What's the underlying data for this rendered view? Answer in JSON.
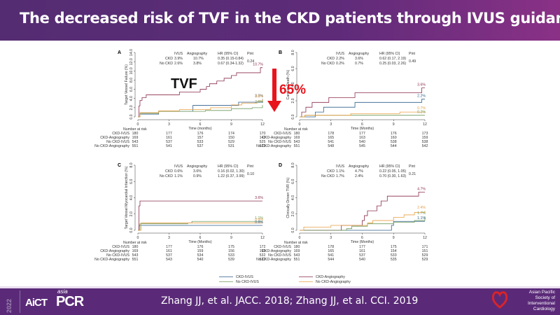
{
  "header": {
    "title": "The  decreased risk of TVF in the CKD patients through IVUS  guidance"
  },
  "annotation": {
    "tvf_label": "TVF",
    "reduction_label": "65%",
    "arrow_color": "#e8141c"
  },
  "footer": {
    "year": "2022",
    "logo_left": "AiCT",
    "logo_asia": "asia",
    "logo_pcr": "PCR",
    "citation": "Zhang JJ, et al. JACC. 2018; Zhang JJ, et al. CCI. 2019",
    "society_lines": [
      "Asian Pacific",
      "Society of",
      "Interventional",
      "Cardiology"
    ]
  },
  "legend": {
    "items": [
      {
        "label": "CKD-IVUS",
        "color": "#2f5f8a"
      },
      {
        "label": "CKD-Angiography",
        "color": "#8b2f4c"
      },
      {
        "label": "No CKD-IVUS",
        "color": "#6e9a5a"
      },
      {
        "label": "No CKD-Angiography",
        "color": "#e8a046"
      }
    ]
  },
  "risk_table_header": "Number at risk",
  "risk_row_labels": [
    "CKD-IVUS",
    "CKD-Angiography",
    "No CKD-IVUS",
    "No CKD-Angiography"
  ],
  "stats_header": {
    "ivus": "IVUS",
    "angio": "Angiography",
    "hr": "HR (95% CI)",
    "p": "P"
  },
  "chart_data": [
    {
      "panel": "A",
      "type": "line",
      "ylabel": "Target Vessel Failure (%)",
      "xlabel": "Time (months)",
      "ylim": [
        0,
        14
      ],
      "yticks": [
        "0.0",
        "2.0",
        "4.0",
        "6.0",
        "8.0",
        "10.0",
        "12.0",
        "14.0"
      ],
      "xlim": [
        0,
        12
      ],
      "xticks": [
        "0",
        "3",
        "6",
        "9",
        "12"
      ],
      "stats": [
        {
          "group": "CKD",
          "ivus": "3.9%",
          "angio": "10.7%",
          "hr": "0.35 (0.15-0.84)"
        },
        {
          "group": "No CKD",
          "ivus": "2.6%",
          "angio": "3.8%",
          "hr": "0.67 (0.34-1.32)"
        }
      ],
      "p_int": "0.24",
      "p_sub": "int",
      "end_labels": [
        {
          "series": 1,
          "text": "10.7%"
        },
        {
          "series": 0,
          "text": "3.9%"
        },
        {
          "series": 3,
          "text": "3.8%"
        },
        {
          "series": 2,
          "text": "2.6%"
        }
      ],
      "series": [
        {
          "name": "CKD-IVUS",
          "points": [
            [
              0,
              0
            ],
            [
              0.2,
              0.6
            ],
            [
              1.5,
              0.6
            ],
            [
              2,
              1.2
            ],
            [
              5,
              1.2
            ],
            [
              5.3,
              2.5
            ],
            [
              9.5,
              2.5
            ],
            [
              9.7,
              3.2
            ],
            [
              11.7,
              3.2
            ],
            [
              12,
              3.9
            ]
          ]
        },
        {
          "name": "CKD-Angiography",
          "points": [
            [
              0,
              0
            ],
            [
              0.1,
              2.4
            ],
            [
              0.2,
              3.6
            ],
            [
              0.4,
              4.2
            ],
            [
              0.8,
              4.8
            ],
            [
              3.9,
              4.8
            ],
            [
              4.0,
              5.4
            ],
            [
              5.6,
              5.4
            ],
            [
              6.0,
              6.0
            ],
            [
              6.6,
              6.6
            ],
            [
              6.9,
              7.2
            ],
            [
              7.6,
              7.8
            ],
            [
              8.3,
              8.4
            ],
            [
              9.0,
              9.0
            ],
            [
              9.5,
              9.6
            ],
            [
              11.6,
              9.6
            ],
            [
              11.8,
              10.7
            ],
            [
              12,
              10.7
            ]
          ]
        },
        {
          "name": "No CKD-IVUS",
          "points": [
            [
              0,
              0
            ],
            [
              0.2,
              0.8
            ],
            [
              1.2,
              0.8
            ],
            [
              2,
              1.2
            ],
            [
              6.5,
              1.4
            ],
            [
              9,
              1.8
            ],
            [
              11,
              2.0
            ],
            [
              12,
              2.6
            ]
          ]
        },
        {
          "name": "No CKD-Angiography",
          "points": [
            [
              0,
              0
            ],
            [
              0.2,
              0.9
            ],
            [
              2,
              1.3
            ],
            [
              4,
              1.6
            ],
            [
              7,
              2.0
            ],
            [
              9,
              2.6
            ],
            [
              10,
              3.0
            ],
            [
              11.5,
              3.4
            ],
            [
              12,
              3.8
            ]
          ]
        }
      ],
      "risk": [
        [
          "180",
          "177",
          "176",
          "174",
          "170"
        ],
        [
          "169",
          "161",
          "157",
          "150",
          "147"
        ],
        [
          "543",
          "537",
          "533",
          "529",
          "525"
        ],
        [
          "551",
          "541",
          "537",
          "531",
          "525"
        ]
      ]
    },
    {
      "panel": "B",
      "type": "line",
      "ylabel": "Cardiac Death (%)",
      "xlabel": "Time (Months)",
      "ylim": [
        0,
        8
      ],
      "yticks": [
        "0.0",
        "2.0",
        "4.0",
        "6.0",
        "8.0"
      ],
      "xlim": [
        0,
        12
      ],
      "xticks": [
        "0",
        "3",
        "6",
        "9",
        "12"
      ],
      "stats": [
        {
          "group": "CKD",
          "ivus": "2.2%",
          "angio": "3.6%",
          "hr": "0.62 (0.17, 2.19)"
        },
        {
          "group": "No CKD",
          "ivus": "0.2%",
          "angio": "0.7%",
          "hr": "0.25 (0.03, 2.26)"
        }
      ],
      "p_int": "0.49",
      "p_sub": "int",
      "end_labels": [
        {
          "series": 1,
          "text": "3.6%"
        },
        {
          "series": 0,
          "text": "2.2%"
        },
        {
          "series": 3,
          "text": "0.7%"
        },
        {
          "series": 2,
          "text": "0.2%"
        }
      ],
      "series": [
        {
          "name": "CKD-IVUS",
          "points": [
            [
              0,
              0
            ],
            [
              0.3,
              0
            ],
            [
              1.5,
              0
            ],
            [
              1.5,
              0.6
            ],
            [
              2.3,
              0.6
            ],
            [
              2.3,
              1.2
            ],
            [
              5.3,
              1.2
            ],
            [
              5.3,
              1.8
            ],
            [
              11.7,
              1.8
            ],
            [
              11.7,
              2.2
            ],
            [
              12,
              2.2
            ]
          ]
        },
        {
          "name": "CKD-Angiography",
          "points": [
            [
              0,
              0
            ],
            [
              0.2,
              0.6
            ],
            [
              0.6,
              1.2
            ],
            [
              1.2,
              1.8
            ],
            [
              2.8,
              2.4
            ],
            [
              5.3,
              3.0
            ],
            [
              11.6,
              3.0
            ],
            [
              11.7,
              3.6
            ],
            [
              12,
              3.6
            ]
          ]
        },
        {
          "name": "No CKD-IVUS",
          "points": [
            [
              0,
              0
            ],
            [
              0.5,
              0.2
            ],
            [
              12,
              0.2
            ]
          ]
        },
        {
          "name": "No CKD-Angiography",
          "points": [
            [
              0,
              0
            ],
            [
              0.5,
              0.2
            ],
            [
              4.9,
              0.4
            ],
            [
              9.6,
              0.6
            ],
            [
              12,
              0.7
            ]
          ]
        }
      ],
      "risk": [
        [
          "180",
          "178",
          "177",
          "176",
          "173"
        ],
        [
          "169",
          "165",
          "163",
          "160",
          "159"
        ],
        [
          "543",
          "541",
          "540",
          "538",
          "538"
        ],
        [
          "551",
          "548",
          "545",
          "544",
          "542"
        ]
      ]
    },
    {
      "panel": "C",
      "type": "line",
      "ylabel": "Target Vessel Myocardial Infarction (%)",
      "xlabel": "Time (Months)",
      "ylim": [
        0,
        8
      ],
      "yticks": [
        "0.0",
        "2.0",
        "4.0",
        "6.0",
        "8.0"
      ],
      "xlim": [
        0,
        12
      ],
      "xticks": [
        "0",
        "3",
        "6",
        "9",
        "12"
      ],
      "stats": [
        {
          "group": "CKD",
          "ivus": "0.6%",
          "angio": "3.6%",
          "hr": "0.16 (0.02, 1.30)"
        },
        {
          "group": "No CKD",
          "ivus": "1.1%",
          "angio": "0.9%",
          "hr": "1.22 (0.37, 3.99)"
        }
      ],
      "p_int": "0.10",
      "p_sub": "int",
      "end_labels": [
        {
          "series": 1,
          "text": "3.6%"
        },
        {
          "series": 2,
          "text": "1.1%"
        },
        {
          "series": 3,
          "text": "0.9%"
        },
        {
          "series": 0,
          "text": "0.6%"
        }
      ],
      "series": [
        {
          "name": "CKD-IVUS",
          "points": [
            [
              0,
              0
            ],
            [
              0.1,
              0.6
            ],
            [
              12,
              0.6
            ]
          ]
        },
        {
          "name": "CKD-Angiography",
          "points": [
            [
              0,
              0
            ],
            [
              0.1,
              3.0
            ],
            [
              0.2,
              3.6
            ],
            [
              12,
              3.6
            ]
          ]
        },
        {
          "name": "No CKD-IVUS",
          "points": [
            [
              0,
              0
            ],
            [
              0.2,
              0.8
            ],
            [
              4.8,
              0.9
            ],
            [
              5.2,
              1.1
            ],
            [
              12,
              1.1
            ]
          ]
        },
        {
          "name": "No CKD-Angiography",
          "points": [
            [
              0,
              0
            ],
            [
              0.3,
              0.9
            ],
            [
              12,
              0.9
            ]
          ]
        }
      ],
      "risk": [
        [
          "180",
          "177",
          "176",
          "175",
          "172"
        ],
        [
          "169",
          "161",
          "159",
          "156",
          "155"
        ],
        [
          "543",
          "537",
          "534",
          "533",
          "532"
        ],
        [
          "551",
          "543",
          "540",
          "539",
          "537"
        ]
      ]
    },
    {
      "panel": "D",
      "type": "line",
      "ylabel": "Clinically Driven TVR (%)",
      "xlabel": "Time (Months)",
      "ylim": [
        0,
        8
      ],
      "yticks": [
        "0.0",
        "2.0",
        "4.0",
        "6.0",
        "8.0"
      ],
      "xlim": [
        0,
        12
      ],
      "xticks": [
        "0",
        "3",
        "6",
        "9",
        "12"
      ],
      "stats": [
        {
          "group": "CKD",
          "ivus": "1.1%",
          "angio": "4.7%",
          "hr": "0.22 (0.05, 1.05)"
        },
        {
          "group": "No CKD",
          "ivus": "1.7%",
          "angio": "2.4%",
          "hr": "0.70 (0.30, 1.63)"
        }
      ],
      "p_int": "0.21",
      "p_sub": "int",
      "end_labels": [
        {
          "series": 1,
          "text": "4.7%"
        },
        {
          "series": 3,
          "text": "2.4%"
        },
        {
          "series": 2,
          "text": "1.7%"
        },
        {
          "series": 0,
          "text": "1.1%"
        }
      ],
      "series": [
        {
          "name": "CKD-IVUS",
          "points": [
            [
              0,
              0
            ],
            [
              8.8,
              0
            ],
            [
              8.8,
              0.6
            ],
            [
              9,
              1.1
            ],
            [
              12,
              1.1
            ]
          ]
        },
        {
          "name": "CKD-Angiography",
          "points": [
            [
              0,
              0
            ],
            [
              4.0,
              0
            ],
            [
              4.0,
              0.6
            ],
            [
              6.0,
              1.2
            ],
            [
              6.2,
              1.8
            ],
            [
              6.5,
              2.4
            ],
            [
              7.4,
              3.0
            ],
            [
              7.8,
              3.6
            ],
            [
              8.4,
              4.2
            ],
            [
              11.2,
              4.2
            ],
            [
              11.4,
              4.7
            ],
            [
              12,
              4.7
            ]
          ]
        },
        {
          "name": "No CKD-IVUS",
          "points": [
            [
              0,
              0
            ],
            [
              4.5,
              0.2
            ],
            [
              5,
              0.5
            ],
            [
              6.5,
              0.8
            ],
            [
              9,
              1.0
            ],
            [
              11,
              1.2
            ],
            [
              12,
              1.7
            ]
          ]
        },
        {
          "name": "No CKD-Angiography",
          "points": [
            [
              0,
              0
            ],
            [
              0.4,
              0.4
            ],
            [
              2,
              0.4
            ],
            [
              3,
              0.6
            ],
            [
              6.5,
              0.9
            ],
            [
              7,
              1.2
            ],
            [
              9,
              1.6
            ],
            [
              10,
              1.9
            ],
            [
              11,
              2.2
            ],
            [
              12,
              2.4
            ]
          ]
        }
      ],
      "risk": [
        [
          "180",
          "178",
          "177",
          "175",
          "171"
        ],
        [
          "169",
          "165",
          "161",
          "154",
          "151"
        ],
        [
          "543",
          "541",
          "537",
          "533",
          "529"
        ],
        [
          "551",
          "544",
          "540",
          "535",
          "529"
        ]
      ]
    }
  ]
}
